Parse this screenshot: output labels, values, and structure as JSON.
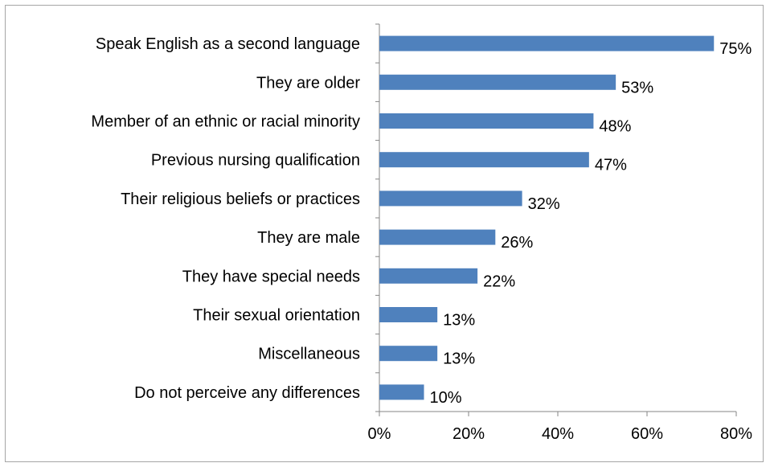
{
  "chart_data": {
    "type": "bar",
    "orientation": "horizontal",
    "categories": [
      "Speak English as a second language",
      "They are older",
      "Member of an ethnic or racial minority",
      "Previous nursing qualification",
      "Their religious beliefs or practices",
      "They are male",
      "They have special needs",
      "Their sexual orientation",
      "Miscellaneous",
      "Do not perceive any differences"
    ],
    "values": [
      75,
      53,
      48,
      47,
      32,
      26,
      22,
      13,
      13,
      10
    ],
    "value_labels": [
      "75%",
      "53%",
      "48%",
      "47%",
      "32%",
      "26%",
      "22%",
      "13%",
      "13%",
      "10%"
    ],
    "xlim": [
      0,
      80
    ],
    "x_ticks": [
      0,
      20,
      40,
      60,
      80
    ],
    "x_tick_labels": [
      "0%",
      "20%",
      "40%",
      "60%",
      "80%"
    ],
    "bar_color": "#4f81bd",
    "axis_color": "#868686",
    "grid": false,
    "legend": "none"
  }
}
